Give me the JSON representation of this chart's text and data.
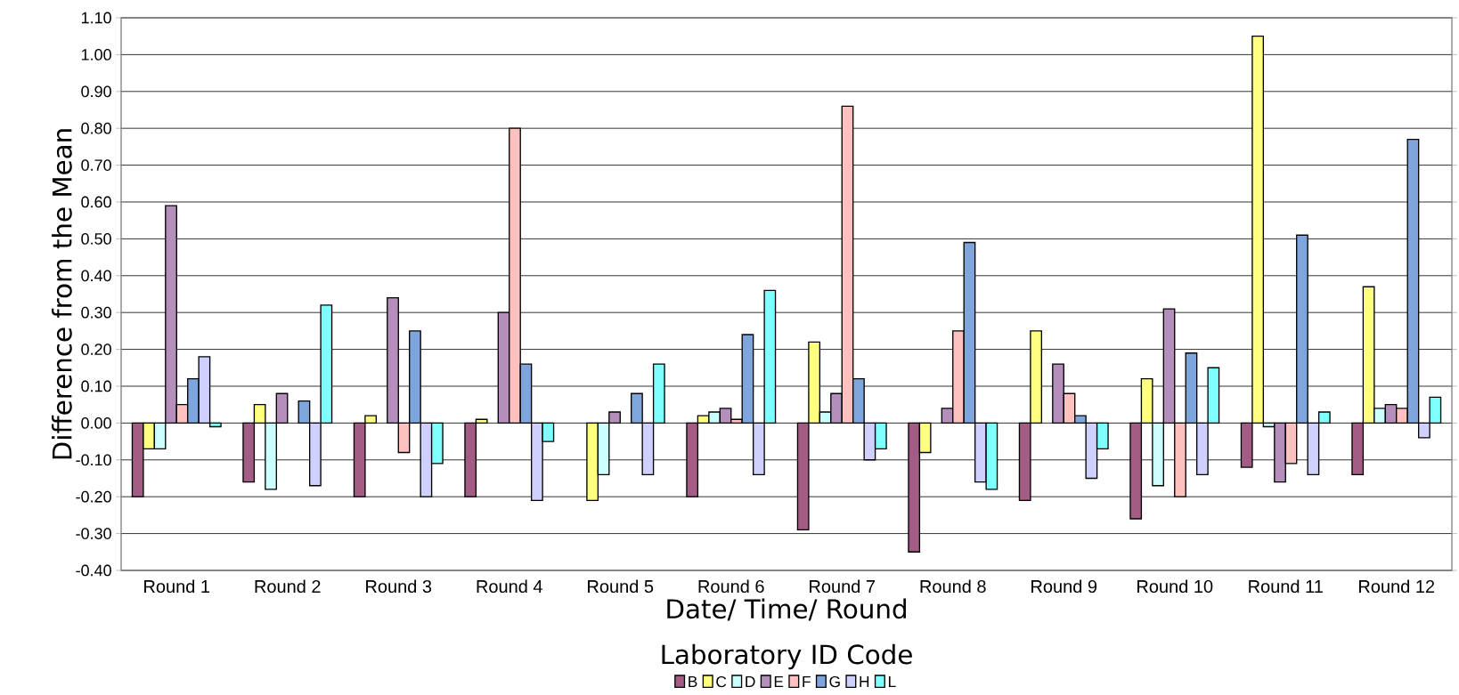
{
  "chart_data": {
    "type": "bar",
    "xlabel": "Date/ Time/ Round",
    "ylabel": "Difference from the Mean",
    "legend_title": "Laboratory ID Code",
    "categories": [
      "Round 1",
      "Round 2",
      "Round 3",
      "Round 4",
      "Round 5",
      "Round 6",
      "Round 7",
      "Round 8",
      "Round 9",
      "Round 10",
      "Round 11",
      "Round 12"
    ],
    "series": [
      {
        "name": "B",
        "color": "#a35c84",
        "values": [
          -0.2,
          -0.16,
          -0.2,
          -0.2,
          null,
          -0.2,
          -0.29,
          -0.35,
          -0.21,
          -0.26,
          -0.12,
          -0.14
        ]
      },
      {
        "name": "C",
        "color": "#ffff80",
        "values": [
          -0.07,
          0.05,
          0.02,
          0.01,
          -0.21,
          0.02,
          0.22,
          -0.08,
          0.25,
          0.12,
          1.05,
          0.37
        ]
      },
      {
        "name": "D",
        "color": "#ccffff",
        "values": [
          -0.07,
          -0.18,
          null,
          null,
          -0.14,
          0.03,
          0.03,
          null,
          null,
          -0.17,
          -0.01,
          0.04
        ]
      },
      {
        "name": "E",
        "color": "#b48fbb",
        "values": [
          0.59,
          0.08,
          0.34,
          0.3,
          0.03,
          0.04,
          0.08,
          0.04,
          0.16,
          0.31,
          -0.16,
          0.05
        ]
      },
      {
        "name": "F",
        "color": "#ffc0c0",
        "values": [
          0.05,
          null,
          -0.08,
          0.8,
          null,
          0.01,
          0.86,
          0.25,
          0.08,
          -0.2,
          -0.11,
          0.04
        ]
      },
      {
        "name": "G",
        "color": "#7ea6dc",
        "values": [
          0.12,
          0.06,
          0.25,
          0.16,
          0.08,
          0.24,
          0.12,
          0.49,
          0.02,
          0.19,
          0.51,
          0.77
        ]
      },
      {
        "name": "H",
        "color": "#d0d0ff",
        "values": [
          0.18,
          -0.17,
          -0.2,
          -0.21,
          -0.14,
          -0.14,
          -0.1,
          -0.16,
          -0.15,
          -0.14,
          -0.14,
          -0.04
        ]
      },
      {
        "name": "L",
        "color": "#80ffff",
        "values": [
          -0.01,
          0.32,
          -0.11,
          -0.05,
          0.16,
          0.36,
          -0.07,
          -0.18,
          -0.07,
          0.15,
          0.03,
          0.07
        ]
      }
    ],
    "ylim": [
      -0.4,
      1.1
    ],
    "yticks": [
      {
        "value": -0.4,
        "label": "-0.40"
      },
      {
        "value": -0.3,
        "label": "-0.30"
      },
      {
        "value": -0.2,
        "label": "-0.20"
      },
      {
        "value": -0.1,
        "label": "-0.10"
      },
      {
        "value": 0,
        "label": "0.00"
      },
      {
        "value": 0.1,
        "label": "0.10"
      },
      {
        "value": 0.2,
        "label": "0.20"
      },
      {
        "value": 0.3,
        "label": "0.30"
      },
      {
        "value": 0.4,
        "label": "0.40"
      },
      {
        "value": 0.5,
        "label": "0.50"
      },
      {
        "value": 0.6,
        "label": "0.60"
      },
      {
        "value": 0.7,
        "label": "0.70"
      },
      {
        "value": 0.8,
        "label": "0.80"
      },
      {
        "value": 0.9,
        "label": "0.90"
      },
      {
        "value": 1.0,
        "label": "1.00"
      },
      {
        "value": 1.1,
        "label": "1.10"
      }
    ],
    "grid": "y",
    "legend": "bottom"
  }
}
